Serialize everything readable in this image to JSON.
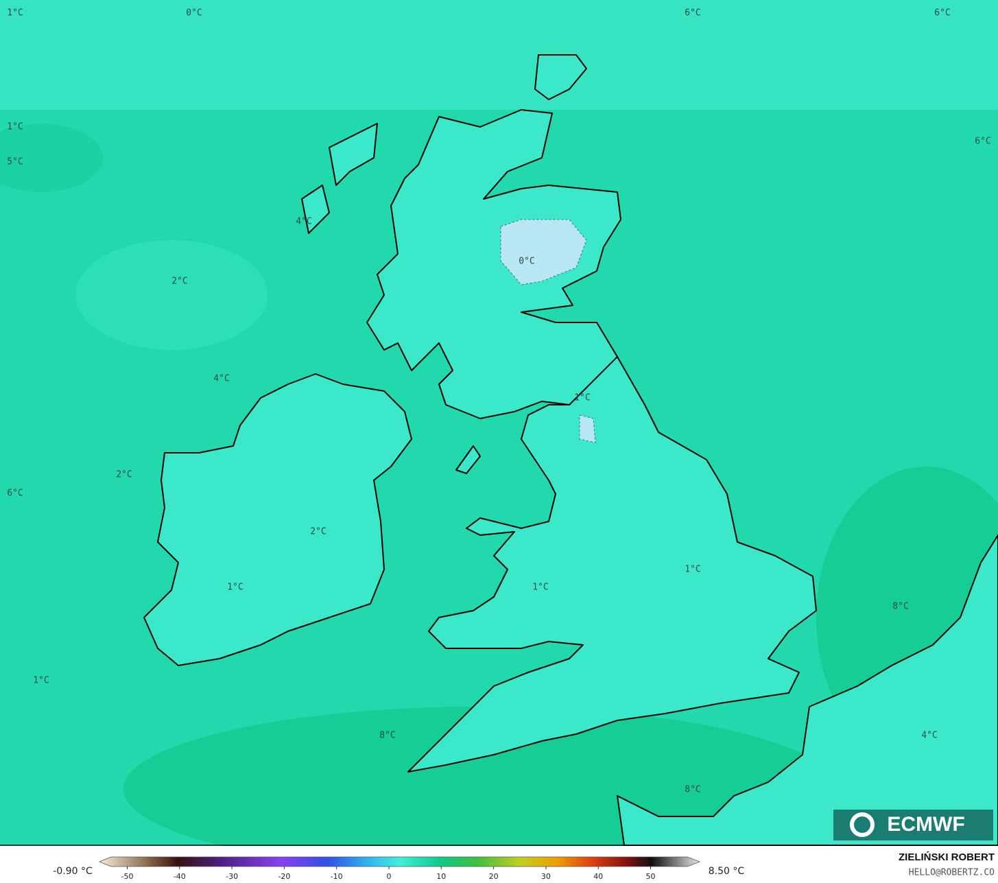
{
  "map": {
    "labels": [
      "1°C",
      "0°C",
      "6°C",
      "6°C",
      "1°C",
      "5°C",
      "6°C",
      "4°C",
      "0°C",
      "2°C",
      "4°C",
      "1°C",
      "2°C",
      "6°C",
      "2°C",
      "1°C",
      "1°C",
      "1°C",
      "8°C",
      "1°C",
      "8°C",
      "4°C",
      "8°C"
    ],
    "logo": "ECMWF"
  },
  "legend": {
    "min_label": "-0.90 °C",
    "max_label": "8.50 °C",
    "ticks": [
      -50,
      -40,
      -30,
      -20,
      -10,
      0,
      10,
      20,
      30,
      40,
      50
    ]
  },
  "credit": {
    "name": "ZIELIŃSKI ROBERT",
    "email": "HELLO@ROBERTZ.CO"
  }
}
